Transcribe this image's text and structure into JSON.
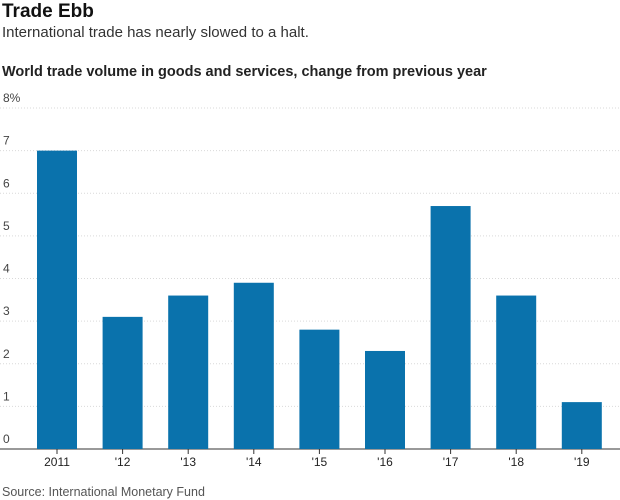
{
  "header": {
    "title": "Trade Ebb",
    "subtitle": "International trade has nearly slowed to a halt."
  },
  "chart_data": {
    "type": "bar",
    "title": "World trade volume in goods and services, change from previous year",
    "xlabel": "",
    "ylabel": "",
    "categories": [
      "2011",
      "'12",
      "'13",
      "'14",
      "'15",
      "'16",
      "'17",
      "'18",
      "'19"
    ],
    "values": [
      7.0,
      3.1,
      3.6,
      3.9,
      2.8,
      2.3,
      5.7,
      3.6,
      1.1
    ],
    "ylim": [
      0,
      8
    ],
    "yticks": [
      "0",
      "1",
      "2",
      "3",
      "4",
      "5",
      "6",
      "7",
      "8%"
    ],
    "grid": true,
    "bar_color": "#0a72ac"
  },
  "footer": {
    "source": "Source: International Monetary Fund"
  }
}
